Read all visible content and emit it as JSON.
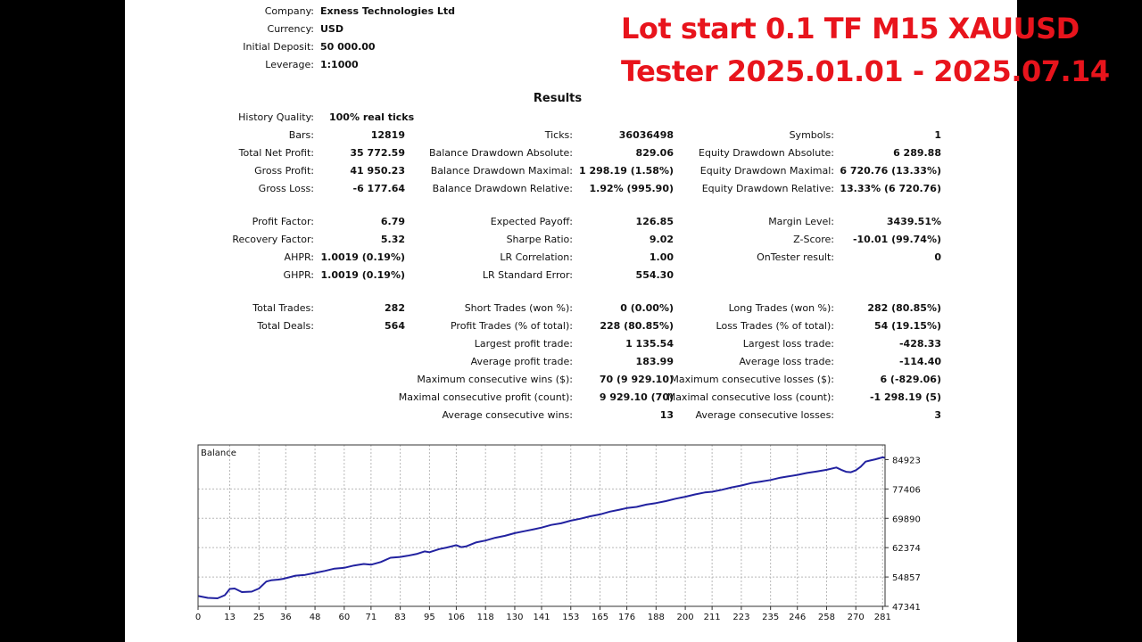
{
  "header": {
    "rows": [
      {
        "label": "Company:",
        "value": "Exness Technologies Ltd"
      },
      {
        "label": "Currency:",
        "value": "USD"
      },
      {
        "label": "Initial Deposit:",
        "value": "50 000.00"
      },
      {
        "label": "Leverage:",
        "value": "1:1000"
      }
    ]
  },
  "overlay": {
    "line1": "Lot start 0.1   TF M15  XAUUSD",
    "line2": "Tester 2025.01.01 - 2025.07.14",
    "color": "#e8141c"
  },
  "results": {
    "title": "Results",
    "history_quality": {
      "label": "History Quality:",
      "value": "100% real ticks"
    },
    "col1": [
      {
        "label": "Bars:",
        "value": "12819"
      },
      {
        "label": "Total Net Profit:",
        "value": "35 772.59"
      },
      {
        "label": "Gross Profit:",
        "value": "41 950.23"
      },
      {
        "label": "Gross Loss:",
        "value": "-6 177.64"
      },
      {
        "label": "Profit Factor:",
        "value": "6.79"
      },
      {
        "label": "Recovery Factor:",
        "value": "5.32"
      },
      {
        "label": "AHPR:",
        "value": "1.0019 (0.19%)"
      },
      {
        "label": "GHPR:",
        "value": "1.0019 (0.19%)"
      },
      {
        "label": "Total Trades:",
        "value": "282"
      },
      {
        "label": "Total Deals:",
        "value": "564"
      }
    ],
    "col2": [
      {
        "label": "Ticks:",
        "value": "36036498"
      },
      {
        "label": "Balance Drawdown Absolute:",
        "value": "829.06"
      },
      {
        "label": "Balance Drawdown Maximal:",
        "value": "1 298.19 (1.58%)"
      },
      {
        "label": "Balance Drawdown Relative:",
        "value": "1.92% (995.90)"
      },
      {
        "label": "Expected Payoff:",
        "value": "126.85"
      },
      {
        "label": "Sharpe Ratio:",
        "value": "9.02"
      },
      {
        "label": "LR Correlation:",
        "value": "1.00"
      },
      {
        "label": "LR Standard Error:",
        "value": "554.30"
      },
      {
        "label": "Short Trades (won %):",
        "value": "0 (0.00%)"
      },
      {
        "label": "Profit Trades (% of total):",
        "value": "228 (80.85%)"
      },
      {
        "label": "Largest profit trade:",
        "value": "1 135.54"
      },
      {
        "label": "Average profit trade:",
        "value": "183.99"
      },
      {
        "label": "Maximum consecutive wins ($):",
        "value": "70 (9 929.10)"
      },
      {
        "label": "Maximal consecutive profit (count):",
        "value": "9 929.10 (70)"
      },
      {
        "label": "Average consecutive wins:",
        "value": "13"
      }
    ],
    "col3": [
      {
        "label": "Symbols:",
        "value": "1"
      },
      {
        "label": "Equity Drawdown Absolute:",
        "value": "6 289.88"
      },
      {
        "label": "Equity Drawdown Maximal:",
        "value": "6 720.76 (13.33%)"
      },
      {
        "label": "Equity Drawdown Relative:",
        "value": "13.33% (6 720.76)"
      },
      {
        "label": "Margin Level:",
        "value": "3439.51%"
      },
      {
        "label": "Z-Score:",
        "value": "-10.01 (99.74%)"
      },
      {
        "label": "OnTester result:",
        "value": "0"
      },
      {
        "label": "Long Trades (won %):",
        "value": "282 (80.85%)"
      },
      {
        "label": "Loss Trades (% of total):",
        "value": "54 (19.15%)"
      },
      {
        "label": "Largest loss trade:",
        "value": "-428.33"
      },
      {
        "label": "Average loss trade:",
        "value": "-114.40"
      },
      {
        "label": "Maximum consecutive losses ($):",
        "value": "6 (-829.06)"
      },
      {
        "label": "Maximal consecutive loss (count):",
        "value": "-1 298.19 (5)"
      },
      {
        "label": "Average consecutive losses:",
        "value": "3"
      }
    ]
  },
  "chart_data": {
    "type": "line",
    "legend": "Balance",
    "x_ticks": [
      "0",
      "13",
      "25",
      "36",
      "48",
      "60",
      "71",
      "83",
      "95",
      "106",
      "118",
      "130",
      "141",
      "153",
      "165",
      "176",
      "188",
      "200",
      "211",
      "223",
      "235",
      "246",
      "258",
      "270",
      "281"
    ],
    "y_ticks": [
      "84923",
      "77406",
      "69890",
      "62374",
      "54857",
      "47341"
    ],
    "xlim": [
      0,
      282
    ],
    "ylim": [
      47341,
      88681
    ],
    "grid": true,
    "line_color": "#2222a0",
    "series": [
      {
        "x": [
          0,
          4,
          8,
          11,
          13,
          15,
          18,
          22,
          25,
          28,
          30,
          33,
          35,
          40,
          44,
          48,
          52,
          56,
          60,
          64,
          68,
          71,
          75,
          79,
          83,
          86,
          90,
          93,
          95,
          99,
          102,
          106,
          108,
          110,
          114,
          118,
          122,
          126,
          130,
          134,
          138,
          141,
          145,
          149,
          153,
          157,
          161,
          165,
          169,
          173,
          176,
          180,
          184,
          188,
          192,
          196,
          200,
          204,
          208,
          211,
          215,
          219,
          223,
          227,
          231,
          235,
          239,
          242,
          246,
          250,
          254,
          258,
          262,
          264,
          266,
          268,
          270,
          272,
          274,
          276,
          278,
          281,
          282
        ],
        "y": [
          50000,
          49500,
          49400,
          50200,
          51800,
          51900,
          51000,
          51100,
          51900,
          53700,
          54000,
          54200,
          54400,
          55200,
          55400,
          55900,
          56400,
          57000,
          57200,
          57800,
          58200,
          58000,
          58700,
          59800,
          60000,
          60300,
          60800,
          61400,
          61200,
          62000,
          62400,
          63000,
          62500,
          62700,
          63700,
          64200,
          64900,
          65400,
          66100,
          66600,
          67100,
          67500,
          68200,
          68600,
          69300,
          69800,
          70400,
          70900,
          71600,
          72100,
          72500,
          72800,
          73400,
          73800,
          74300,
          74900,
          75400,
          76000,
          76500,
          76700,
          77200,
          77800,
          78300,
          78900,
          79300,
          79700,
          80300,
          80600,
          81000,
          81500,
          81900,
          82300,
          82900,
          82300,
          81800,
          81700,
          82200,
          83100,
          84400,
          84700,
          85000,
          85500,
          85400
        ]
      }
    ]
  }
}
